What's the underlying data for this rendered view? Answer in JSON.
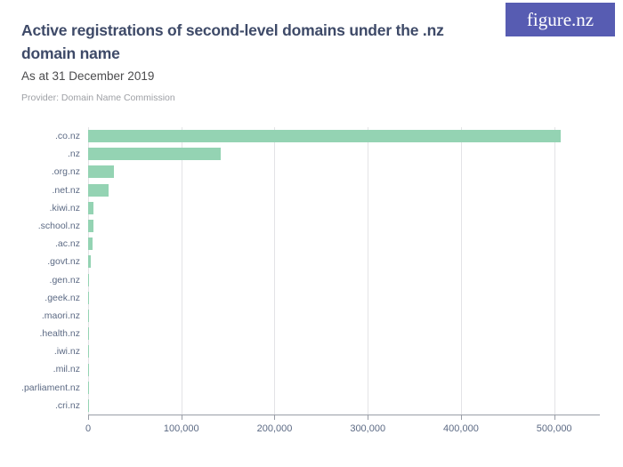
{
  "logo": {
    "text": "figure.nz",
    "bg_color": "#575CB2",
    "text_color": "#FFFFFF"
  },
  "header": {
    "title": "Active registrations of second-level domains under the .nz domain name",
    "subtitle": "As at 31 December 2019",
    "provider": "Provider: Domain Name Commission"
  },
  "colors": {
    "bar": "#94D3B3",
    "title_text": "#3E4A68",
    "axis_label_text": "#5C6A84",
    "gridline": "#E3E3E6",
    "axis_line": "#999DA6"
  },
  "chart_data": {
    "type": "bar",
    "orientation": "horizontal",
    "title": "Active registrations of second-level domains under the .nz domain name",
    "subtitle": "As at 31 December 2019",
    "source": "Provider: Domain Name Commission",
    "categories": [
      ".co.nz",
      ".nz",
      ".org.nz",
      ".net.nz",
      ".kiwi.nz",
      ".school.nz",
      ".ac.nz",
      ".govt.nz",
      ".gen.nz",
      ".geek.nz",
      ".maori.nz",
      ".health.nz",
      ".iwi.nz",
      ".mil.nz",
      ".parliament.nz",
      ".cri.nz"
    ],
    "values": [
      507000,
      142000,
      28000,
      22000,
      5900,
      5700,
      4600,
      2900,
      1300,
      1200,
      1100,
      400,
      100,
      50,
      30,
      20
    ],
    "xlabel": "",
    "ylabel": "",
    "xlim": [
      0,
      549000
    ],
    "xticks": [
      0,
      100000,
      200000,
      300000,
      400000,
      500000
    ],
    "xtick_labels": [
      "0",
      "100,000",
      "200,000",
      "300,000",
      "400,000",
      "500,000"
    ],
    "grid": "vertical",
    "legend": "none"
  }
}
